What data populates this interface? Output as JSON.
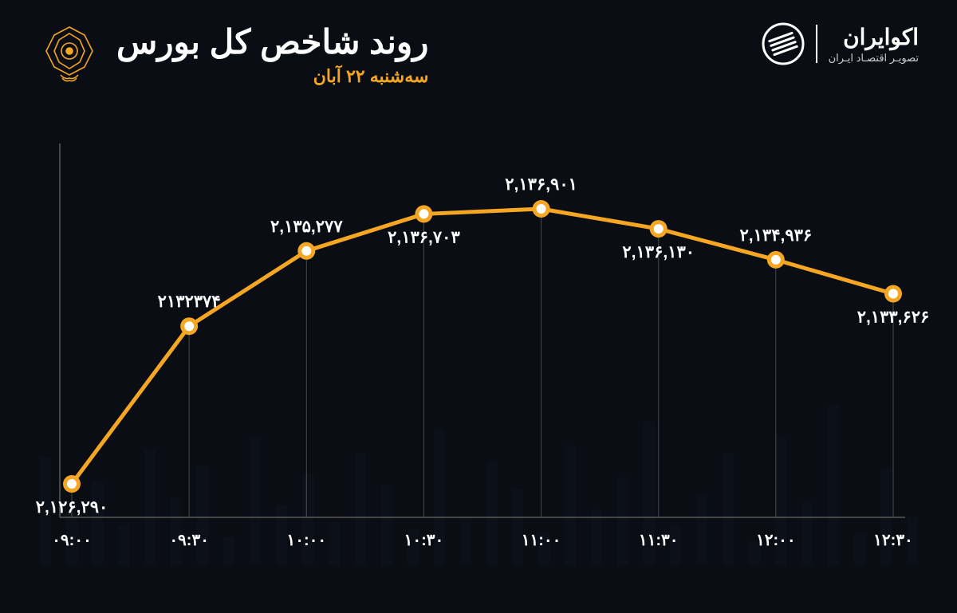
{
  "header": {
    "title": "روند شاخص کل بورس",
    "subtitle": "سه‌شنبه ۲۲ آبان",
    "brand_name": "اکوایران",
    "brand_tag": "تصویـر اقتصـاد ایـران"
  },
  "chart": {
    "type": "line",
    "background_color": "#0a0d14",
    "line_color": "#f5a623",
    "line_width": 5,
    "marker_outer_color": "#f5a623",
    "marker_inner_color": "#ffffff",
    "marker_outer_r": 11,
    "marker_inner_r": 6,
    "axis_color": "#5a5a5a",
    "dropline_color": "#4a4a4a",
    "label_color": "#ffffff",
    "value_fontsize": 21,
    "xlabel_fontsize": 20,
    "accent_color": "#f5a623",
    "y_min": 2125000,
    "y_max": 2138500,
    "points": [
      {
        "time": "۰۹:۰۰",
        "value": 2126290,
        "label": "۲,۱۲۶,۲۹۰",
        "label_pos": "below"
      },
      {
        "time": "۰۹:۳۰",
        "value": 2132374,
        "label": "۲۱۳۲۳۷۴",
        "label_pos": "above"
      },
      {
        "time": "۱۰:۰۰",
        "value": 2135277,
        "label": "۲,۱۳۵,۲۷۷",
        "label_pos": "above"
      },
      {
        "time": "۱۰:۳۰",
        "value": 2136703,
        "label": "۲,۱۳۶,۷۰۳",
        "label_pos": "below"
      },
      {
        "time": "۱۱:۰۰",
        "value": 2136901,
        "label": "۲,۱۳۶,۹۰۱",
        "label_pos": "above"
      },
      {
        "time": "۱۱:۳۰",
        "value": 2136130,
        "label": "۲,۱۳۶,۱۳۰",
        "label_pos": "below"
      },
      {
        "time": "۱۲:۰۰",
        "value": 2134936,
        "label": "۲,۱۳۴,۹۳۶",
        "label_pos": "above"
      },
      {
        "time": "۱۲:۳۰",
        "value": 2133626,
        "label": "۲,۱۳۳,۶۲۶",
        "label_pos": "below"
      }
    ],
    "bg_bars": [
      60,
      120,
      40,
      200,
      80,
      160,
      30,
      140,
      90,
      50,
      180,
      110,
      70,
      150,
      40,
      95,
      130,
      60,
      170,
      45,
      100,
      140,
      55,
      115,
      75,
      160,
      35,
      125,
      85,
      145,
      50,
      105,
      65,
      135
    ]
  }
}
